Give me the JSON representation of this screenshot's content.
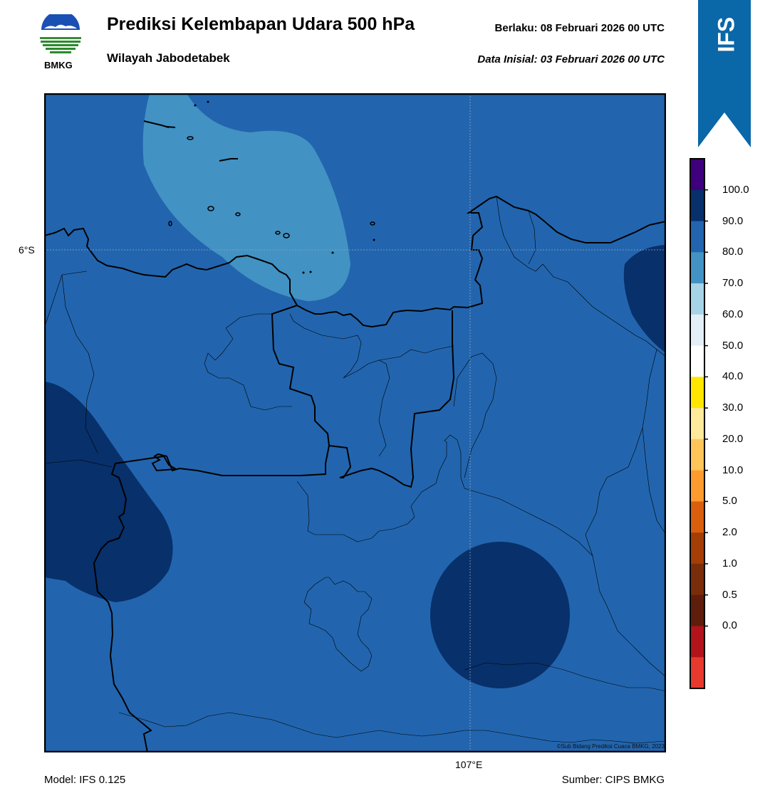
{
  "header": {
    "title": "Prediksi Kelembapan Udara 500 hPa",
    "subtitle": "Wilayah Jabodetabek",
    "valid_time": "Berlaku:  08 Februari 2026 00 UTC",
    "initial_time": "Data Inisial:  03 Februari 2026 00 UTC"
  },
  "logo": {
    "text": "BMKG",
    "icon": "bmkg-logo"
  },
  "ribbon": {
    "text": "IFS",
    "color": "#0a67a8"
  },
  "map": {
    "lat_label": "6°S",
    "lon_label": "107°E",
    "credit": "©Sub Bidang Prediksi Cuaca BMKG, 2023",
    "field_colors": {
      "80-90": "#2265ae",
      "70-80": "#4292c3",
      "90-100": "#08306b"
    }
  },
  "colorbar": {
    "labels": [
      "100.0",
      "90.0",
      "80.0",
      "70.0",
      "60.0",
      "50.0",
      "40.0",
      "30.0",
      "20.0",
      "10.0",
      "5.0",
      "2.0",
      "1.0",
      "0.5",
      "0.0"
    ],
    "colors": [
      "#3f007d",
      "#08306b",
      "#2265ae",
      "#4292c3",
      "#a6d4e6",
      "#e3eef7",
      "#ffffff",
      "#ffe500",
      "#ffe99b",
      "#ffc558",
      "#fd9b2f",
      "#d95f0e",
      "#a43d06",
      "#7a2d0a",
      "#5e1e0b",
      "#b3141b",
      "#e8392e"
    ]
  },
  "footer": {
    "model": "Model: IFS 0.125",
    "source": "Sumber: CIPS BMKG"
  }
}
